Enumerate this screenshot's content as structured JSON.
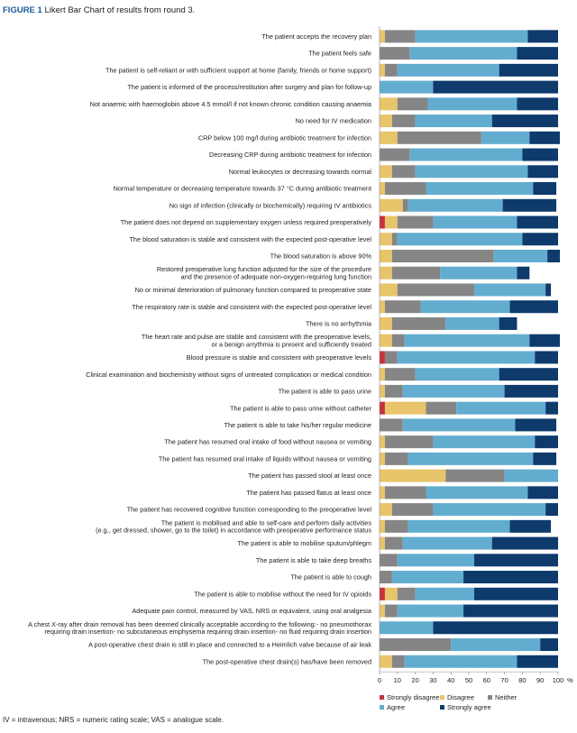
{
  "figure_label": "FIGURE 1",
  "figure_title": "Likert Bar Chart of results from round 3.",
  "footnote": "IV = intravenous; NRS = numeric rating scale; VAS = analogue scale.",
  "colors": {
    "Strongly disagree": "#c8323a",
    "Disagree": "#e8c46a",
    "Neither": "#858585",
    "Agree": "#62adcf",
    "Strongly agree": "#0e3a6c"
  },
  "chart_data": {
    "type": "bar",
    "orientation": "horizontal",
    "stacked": true,
    "xlabel": "",
    "x_unit": "%",
    "xlim": [
      0,
      100
    ],
    "x_ticks": [
      "0",
      "10",
      "20",
      "30",
      "40",
      "50",
      "60",
      "70",
      "80",
      "90",
      "100"
    ],
    "grid": false,
    "legend_position": "bottom",
    "series_names": [
      "Strongly disagree",
      "Disagree",
      "Neither",
      "Agree",
      "Strongly agree"
    ],
    "categories": [
      [
        "The patient accepts the recovery plan"
      ],
      [
        "The patient feels safe"
      ],
      [
        "The patient is self-reliant or with sufficient support at home (family, friends or home support)"
      ],
      [
        "The patient is informed of the process/restitution after surgery and plan for follow-up"
      ],
      [
        "Not anaemic with haemoglobin above 4.5 mmol/l if not known chronic condition causing anaemia"
      ],
      [
        "No need for IV medication"
      ],
      [
        "CRP below 100 mg/l during antibiotic treatment for infection"
      ],
      [
        "Decreasing CRP during antibiotic treatment for infection"
      ],
      [
        "Normal leukocytes or decreasing towards normal"
      ],
      [
        "Normal temperature or decreasing temperature towards 37 °C during antibiotic treatment"
      ],
      [
        "No sign of infection (clinically or biochemically) requiring IV antibiotics"
      ],
      [
        "The patient does not depend on supplementary oxygen unless required preoperatively"
      ],
      [
        "The blood saturation is stable and consistent with the expected post-operative level"
      ],
      [
        "The blood saturation is above 90%"
      ],
      [
        "Restored preoperative lung function adjusted for the size of the procedure",
        "and the presence of adequate non-oxygen-requiring lung function"
      ],
      [
        "No or minimal deterioration of pulmonary function compared to preoperative state"
      ],
      [
        "The respiratory rate is stable and consistent with the expected post-operative level"
      ],
      [
        "There is no arrhythmia"
      ],
      [
        "The heart rate and pulse are stable and consistent with the preoperative levels,",
        "or a benign arrythmia is present and sufficiently treated"
      ],
      [
        "Blood pressure is stable and consistent with preoperative levels"
      ],
      [
        "Clinical examination and biochemistry without signs of untreated complication or medical condition"
      ],
      [
        "The patient is able to pass urine"
      ],
      [
        "The patient is able to pass urine without catheter"
      ],
      [
        "The patient is able to take his/her regular medicine"
      ],
      [
        "The patient has resumed oral intake of food without nausea or vomiting"
      ],
      [
        "The patient has resumed oral intake of liquids without nausea or vomiting"
      ],
      [
        "The patient has passed stool at least once"
      ],
      [
        "The patient has passed flatus at least once"
      ],
      [
        "The patient has recovered cognitive function corresponding to the preoperative level"
      ],
      [
        "The patient is mobilised and able to self-care and perform daily activities",
        "(e.g., get dressed, shower, go to the toilet) in accordance with preoperative performance status"
      ],
      [
        "The patient is able to mobilise sputum/phlegm"
      ],
      [
        "The patient is able to take deep breaths"
      ],
      [
        "The patient is able to cough"
      ],
      [
        "The patient is able to mobilise without the need for IV opioids"
      ],
      [
        "Adequate pain control, measured by VAS, NRS or equivalent, using oral analgesia"
      ],
      [
        "A chest X-ray after drain removal has been deemed clinically acceptable according to the following:- no pneumothorax",
        "requiring drain insertion- no subcutaneous emphysema requiring drain insertion- no fluid requiring drain insertion"
      ],
      [
        "A post-operative chest drain is still in place and connected to a Heimlich valve because of air leak"
      ],
      [
        "The post-operative chest drain(s) has/have been removed"
      ]
    ],
    "series": [
      {
        "name": "Strongly disagree",
        "values": [
          0,
          0,
          0,
          0,
          0,
          0,
          0,
          0,
          0,
          0,
          0,
          3,
          0,
          0,
          0,
          0,
          0,
          0,
          0,
          3,
          0,
          0,
          3,
          0,
          0,
          0,
          0,
          0,
          0,
          0,
          0,
          0,
          0,
          3,
          0,
          0,
          0,
          0
        ]
      },
      {
        "name": "Disagree",
        "values": [
          3,
          0,
          3,
          0,
          10,
          7,
          10,
          0,
          7,
          3,
          13,
          7,
          7,
          7,
          7,
          10,
          3,
          7,
          7,
          0,
          3,
          3,
          23,
          0,
          3,
          3,
          37,
          3,
          7,
          3,
          3,
          0,
          0,
          7,
          3,
          0,
          0,
          7
        ]
      },
      {
        "name": "Neither",
        "values": [
          17,
          17,
          7,
          0,
          17,
          13,
          47,
          17,
          13,
          23,
          3,
          20,
          3,
          57,
          27,
          43,
          20,
          30,
          7,
          7,
          17,
          10,
          17,
          13,
          27,
          13,
          33,
          23,
          23,
          13,
          10,
          10,
          7,
          10,
          7,
          0,
          40,
          7
        ]
      },
      {
        "name": "Agree",
        "values": [
          63,
          60,
          57,
          30,
          50,
          43,
          27,
          63,
          63,
          60,
          53,
          47,
          70,
          30,
          43,
          40,
          50,
          30,
          70,
          77,
          47,
          57,
          50,
          63,
          57,
          70,
          30,
          57,
          63,
          57,
          50,
          43,
          40,
          33,
          37,
          30,
          50,
          63
        ]
      },
      {
        "name": "Strongly agree",
        "values": [
          17,
          23,
          33,
          70,
          23,
          37,
          17,
          20,
          17,
          13,
          30,
          23,
          20,
          7,
          7,
          3,
          27,
          10,
          17,
          13,
          33,
          30,
          7,
          23,
          13,
          13,
          0,
          17,
          7,
          23,
          37,
          47,
          53,
          47,
          53,
          70,
          10,
          23
        ]
      }
    ]
  }
}
